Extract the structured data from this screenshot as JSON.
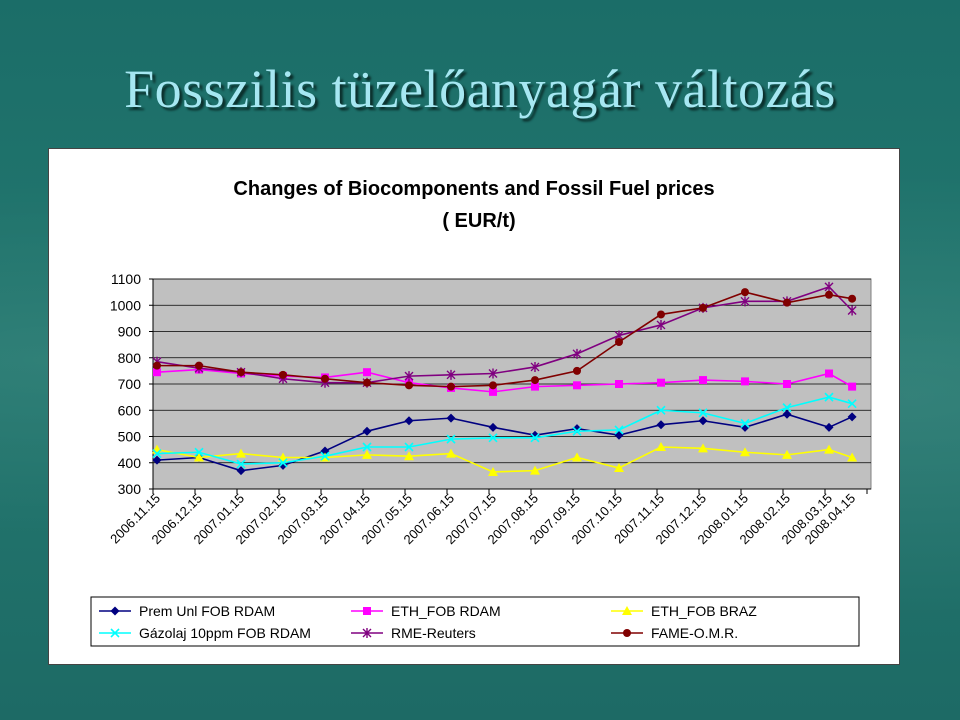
{
  "slide": {
    "title": "Fosszilis tüzelőanyagár változás"
  },
  "chart_data": {
    "type": "line",
    "title": "Changes of Biocomponents and Fossil Fuel prices",
    "subtitle": "( EUR/t)",
    "xlabel": "",
    "ylabel": "",
    "ylim": [
      300,
      1100
    ],
    "yticks": [
      300,
      400,
      500,
      600,
      700,
      800,
      900,
      1000,
      1100
    ],
    "grid": true,
    "legend_position": "bottom",
    "plot_background": "#c0c0c0",
    "categories": [
      "2006.11.15",
      "2006.12.15",
      "2007.01.15",
      "2007.02.15",
      "2007.03.15",
      "2007.04.15",
      "2007.05.15",
      "2007.06.15",
      "2007.07.15",
      "2007.08.15",
      "2007.09.15",
      "2007.10.15",
      "2007.11.15",
      "2007.12.15",
      "2008.01.15",
      "2008.02.15",
      "2008.03.15",
      "2008.04.15"
    ],
    "x_positions": [
      0,
      1,
      2,
      3,
      4,
      5,
      6,
      7,
      8,
      9,
      10,
      11,
      12,
      13,
      14,
      15,
      16,
      16.55
    ],
    "series": [
      {
        "name": "Prem Unl FOB RDAM",
        "color": "#000080",
        "marker": "diamond",
        "values": [
          410,
          420,
          370,
          390,
          445,
          520,
          560,
          570,
          535,
          505,
          530,
          505,
          545,
          560,
          535,
          585,
          535,
          575
        ]
      },
      {
        "name": "ETH_FOB RDAM",
        "color": "#ff00ff",
        "marker": "square",
        "values": [
          745,
          755,
          740,
          730,
          725,
          745,
          705,
          685,
          670,
          690,
          695,
          700,
          705,
          715,
          710,
          700,
          740,
          690
        ]
      },
      {
        "name": "ETH_FOB BRAZ",
        "color": "#ffff00",
        "marker": "triangle",
        "values": [
          450,
          420,
          435,
          420,
          420,
          430,
          425,
          435,
          365,
          370,
          420,
          380,
          460,
          455,
          440,
          430,
          450,
          420
        ]
      },
      {
        "name": "Gázolaj 10ppm FOB RDAM",
        "color": "#00ffff",
        "marker": "x",
        "values": [
          435,
          440,
          395,
          400,
          425,
          460,
          460,
          490,
          495,
          495,
          520,
          525,
          600,
          590,
          550,
          610,
          650,
          625
        ]
      },
      {
        "name": "RME-Reuters",
        "color": "#800080",
        "marker": "star",
        "values": [
          785,
          760,
          745,
          720,
          705,
          705,
          730,
          735,
          740,
          765,
          815,
          885,
          925,
          990,
          1015,
          1015,
          1070,
          980
        ]
      },
      {
        "name": "FAME-O.M.R.",
        "color": "#800000",
        "marker": "circle",
        "values": [
          770,
          770,
          745,
          735,
          720,
          705,
          695,
          690,
          695,
          715,
          750,
          860,
          965,
          990,
          1050,
          1010,
          1040,
          1025
        ]
      }
    ]
  }
}
